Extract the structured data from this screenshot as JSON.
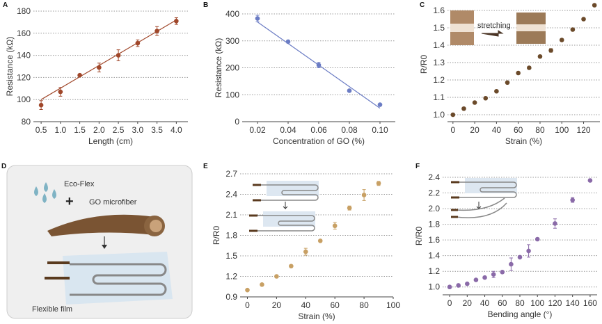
{
  "chart_data": [
    {
      "panel": "A",
      "type": "scatter",
      "xlabel": "Length (cm)",
      "ylabel": "Resistance (kΩ)",
      "xlim": [
        0.3,
        4.3
      ],
      "ylim": [
        80,
        180
      ],
      "xticks": [
        "0.5",
        "1.0",
        "1.5",
        "2.0",
        "2.5",
        "3.0",
        "3.5",
        "4.0"
      ],
      "yticks": [
        "80",
        "100",
        "120",
        "140",
        "160",
        "180"
      ],
      "x": [
        0.5,
        1.0,
        1.5,
        2.0,
        2.5,
        3.0,
        3.5,
        4.0
      ],
      "y": [
        95,
        107,
        122,
        129,
        140,
        151,
        162,
        171
      ],
      "err": [
        4,
        4,
        1,
        4,
        5,
        3,
        4,
        3
      ],
      "fit": [
        [
          0.5,
          100
        ],
        [
          4.0,
          172
        ]
      ],
      "color": "#a0472a",
      "grid": true
    },
    {
      "panel": "B",
      "type": "scatter",
      "xlabel": "Concentration of GO (%)",
      "ylabel": "Resistance (kΩ)",
      "xlim": [
        0.01,
        0.11
      ],
      "ylim": [
        0,
        400
      ],
      "xticks": [
        "0.02",
        "0.04",
        "0.06",
        "0.08",
        "0.10"
      ],
      "yticks": [
        "0",
        "100",
        "200",
        "300",
        "400"
      ],
      "x": [
        0.02,
        0.04,
        0.06,
        0.08,
        0.1
      ],
      "y": [
        383,
        297,
        210,
        115,
        63
      ],
      "err": [
        12,
        5,
        10,
        0,
        0
      ],
      "fit": [
        [
          0.02,
          370
        ],
        [
          0.1,
          50
        ]
      ],
      "color": "#6b7cc4",
      "grid": true
    },
    {
      "panel": "C",
      "type": "scatter",
      "xlabel": "Strain (%)",
      "ylabel": "R/R0",
      "xlim": [
        -5,
        135
      ],
      "ylim": [
        0.96,
        1.62
      ],
      "xticks": [
        "0",
        "20",
        "40",
        "60",
        "80",
        "100",
        "120"
      ],
      "yticks": [
        "1.0",
        "1.1",
        "1.2",
        "1.3",
        "1.4",
        "1.5",
        "1.6"
      ],
      "x": [
        0,
        10,
        20,
        30,
        40,
        50,
        60,
        70,
        80,
        90,
        100,
        110,
        120,
        130
      ],
      "y": [
        1.0,
        1.035,
        1.07,
        1.095,
        1.135,
        1.185,
        1.24,
        1.27,
        1.335,
        1.37,
        1.43,
        1.49,
        1.55,
        1.63
      ],
      "err": [
        0,
        0,
        0,
        0,
        0,
        0,
        0,
        0,
        0,
        0.01,
        0,
        0,
        0,
        0
      ],
      "color": "#6b4a2a",
      "grid": true,
      "annotation": "stretching"
    },
    {
      "panel": "E",
      "type": "scatter",
      "xlabel": "Strain (%)",
      "ylabel": "R/R0",
      "xlim": [
        -5,
        100
      ],
      "ylim": [
        0.9,
        2.7
      ],
      "xticks": [
        "0",
        "20",
        "40",
        "60",
        "80",
        "100"
      ],
      "yticks": [
        "0.9",
        "1.2",
        "1.5",
        "1.8",
        "2.1",
        "2.4",
        "2.7"
      ],
      "x": [
        0,
        10,
        20,
        30,
        40,
        50,
        60,
        70,
        80,
        90
      ],
      "y": [
        1.0,
        1.08,
        1.2,
        1.35,
        1.56,
        1.72,
        1.94,
        2.2,
        2.39,
        2.56
      ],
      "err": [
        0,
        0,
        0,
        0,
        0.05,
        0,
        0.05,
        0.03,
        0.08,
        0.03
      ],
      "color": "#c8a064",
      "grid": true
    },
    {
      "panel": "F",
      "type": "scatter",
      "xlabel": "Bending angle (°)",
      "ylabel": "R/R0",
      "xlim": [
        -8,
        168
      ],
      "ylim": [
        0.9,
        2.4
      ],
      "xticks": [
        "0",
        "20",
        "40",
        "60",
        "80",
        "100",
        "120",
        "140",
        "160"
      ],
      "yticks": [
        "1.0",
        "1.2",
        "1.4",
        "1.6",
        "1.8",
        "2.0",
        "2.2",
        "2.4"
      ],
      "x": [
        0,
        10,
        20,
        30,
        40,
        50,
        60,
        70,
        80,
        90,
        100,
        120,
        140,
        160
      ],
      "y": [
        1.0,
        1.02,
        1.04,
        1.09,
        1.12,
        1.16,
        1.19,
        1.29,
        1.38,
        1.46,
        1.61,
        1.81,
        2.11,
        2.36
      ],
      "err": [
        0,
        0,
        0,
        0,
        0,
        0.04,
        0,
        0.08,
        0,
        0.08,
        0,
        0.06,
        0.03,
        0
      ],
      "color": "#8a6aa8",
      "grid": true
    }
  ],
  "panel_d": {
    "label": "D",
    "eco_flex": "Eco-Flex",
    "plus": "+",
    "go_microfiber": "GO microfiber",
    "flexible_film": "Flexible film"
  }
}
